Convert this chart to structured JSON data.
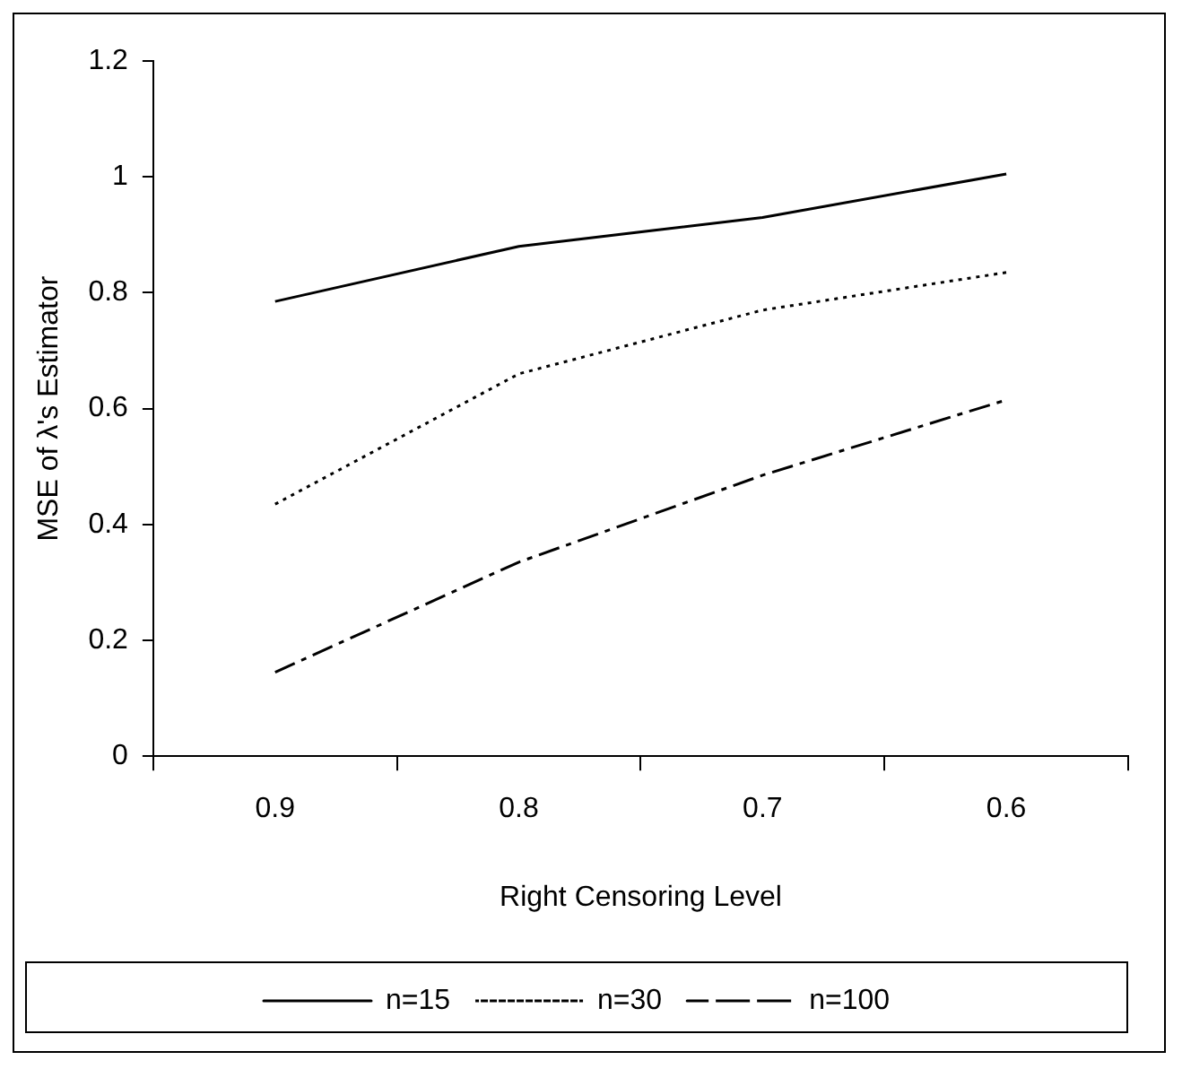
{
  "chart_data": {
    "type": "line",
    "xlabel": "Right Censoring Level",
    "ylabel": "MSE of λ's Estimator",
    "categories": [
      "0.9",
      "0.8",
      "0.7",
      "0.6"
    ],
    "series": [
      {
        "name": "n=15",
        "color": "#000000",
        "line_style": "solid",
        "values": [
          0.785,
          0.88,
          0.93,
          1.005
        ]
      },
      {
        "name": "n=30",
        "color": "#000000",
        "line_style": "dotted",
        "values": [
          0.435,
          0.66,
          0.77,
          0.835
        ]
      },
      {
        "name": "n=100",
        "color": "#000000",
        "line_style": "dashdot",
        "values": [
          0.145,
          0.335,
          0.485,
          0.615
        ]
      }
    ],
    "ylim": [
      0,
      1.2
    ],
    "yticks": [
      0,
      0.2,
      0.4,
      0.6,
      0.8,
      1,
      1.2
    ],
    "grid": false,
    "legend": "bottom",
    "marker": "none"
  }
}
